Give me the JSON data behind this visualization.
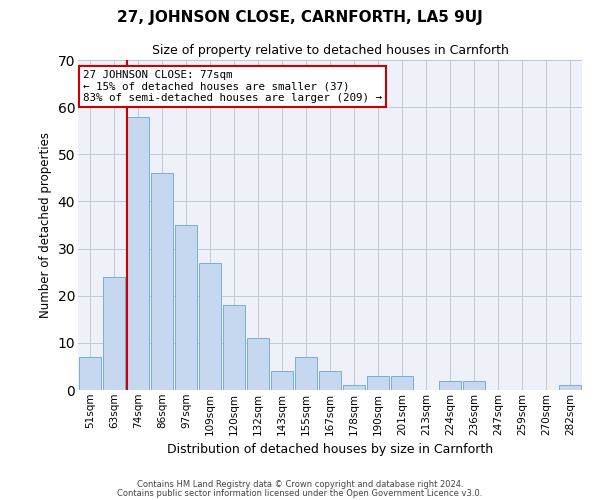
{
  "title": "27, JOHNSON CLOSE, CARNFORTH, LA5 9UJ",
  "subtitle": "Size of property relative to detached houses in Carnforth",
  "xlabel": "Distribution of detached houses by size in Carnforth",
  "ylabel": "Number of detached properties",
  "bar_labels": [
    "51sqm",
    "63sqm",
    "74sqm",
    "86sqm",
    "97sqm",
    "109sqm",
    "120sqm",
    "132sqm",
    "143sqm",
    "155sqm",
    "167sqm",
    "178sqm",
    "190sqm",
    "201sqm",
    "213sqm",
    "224sqm",
    "236sqm",
    "247sqm",
    "259sqm",
    "270sqm",
    "282sqm"
  ],
  "bar_values": [
    7,
    24,
    58,
    46,
    35,
    27,
    18,
    11,
    4,
    7,
    4,
    1,
    3,
    3,
    0,
    2,
    2,
    0,
    0,
    0,
    1
  ],
  "bar_color": "#c5d8f0",
  "bar_edge_color": "#7aacdc",
  "grid_color": "#c0c8d8",
  "background_color": "#eef2f8",
  "vline_color": "#cc0000",
  "annotation_text": "27 JOHNSON CLOSE: 77sqm\n← 15% of detached houses are smaller (37)\n83% of semi-detached houses are larger (209) →",
  "annotation_box_edge": "#cc0000",
  "ylim": [
    0,
    70
  ],
  "yticks": [
    0,
    10,
    20,
    30,
    40,
    50,
    60,
    70
  ],
  "footer_line1": "Contains HM Land Registry data © Crown copyright and database right 2024.",
  "footer_line2": "Contains public sector information licensed under the Open Government Licence v3.0."
}
